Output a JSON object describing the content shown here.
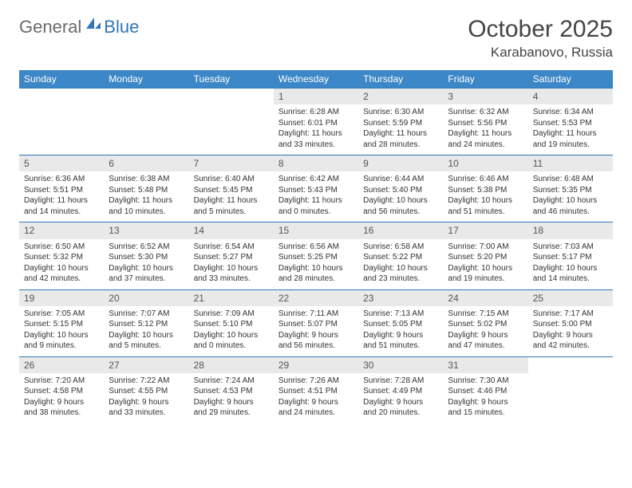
{
  "logo": {
    "text_general": "General",
    "text_blue": "Blue"
  },
  "title": "October 2025",
  "location": "Karabanovo, Russia",
  "day_headers": [
    "Sunday",
    "Monday",
    "Tuesday",
    "Wednesday",
    "Thursday",
    "Friday",
    "Saturday"
  ],
  "colors": {
    "header_bg": "#3c87c7",
    "daynum_bg": "#e9e9e9",
    "border": "#2f76b8",
    "logo_gray": "#6a6a6a",
    "logo_blue": "#2f76b8"
  },
  "weeks": [
    [
      {
        "n": "",
        "sr": "",
        "ss": "",
        "dl": "",
        "empty": true
      },
      {
        "n": "",
        "sr": "",
        "ss": "",
        "dl": "",
        "empty": true
      },
      {
        "n": "",
        "sr": "",
        "ss": "",
        "dl": "",
        "empty": true
      },
      {
        "n": "1",
        "sr": "Sunrise: 6:28 AM",
        "ss": "Sunset: 6:01 PM",
        "dl": "Daylight: 11 hours and 33 minutes."
      },
      {
        "n": "2",
        "sr": "Sunrise: 6:30 AM",
        "ss": "Sunset: 5:59 PM",
        "dl": "Daylight: 11 hours and 28 minutes."
      },
      {
        "n": "3",
        "sr": "Sunrise: 6:32 AM",
        "ss": "Sunset: 5:56 PM",
        "dl": "Daylight: 11 hours and 24 minutes."
      },
      {
        "n": "4",
        "sr": "Sunrise: 6:34 AM",
        "ss": "Sunset: 5:53 PM",
        "dl": "Daylight: 11 hours and 19 minutes."
      }
    ],
    [
      {
        "n": "5",
        "sr": "Sunrise: 6:36 AM",
        "ss": "Sunset: 5:51 PM",
        "dl": "Daylight: 11 hours and 14 minutes."
      },
      {
        "n": "6",
        "sr": "Sunrise: 6:38 AM",
        "ss": "Sunset: 5:48 PM",
        "dl": "Daylight: 11 hours and 10 minutes."
      },
      {
        "n": "7",
        "sr": "Sunrise: 6:40 AM",
        "ss": "Sunset: 5:45 PM",
        "dl": "Daylight: 11 hours and 5 minutes."
      },
      {
        "n": "8",
        "sr": "Sunrise: 6:42 AM",
        "ss": "Sunset: 5:43 PM",
        "dl": "Daylight: 11 hours and 0 minutes."
      },
      {
        "n": "9",
        "sr": "Sunrise: 6:44 AM",
        "ss": "Sunset: 5:40 PM",
        "dl": "Daylight: 10 hours and 56 minutes."
      },
      {
        "n": "10",
        "sr": "Sunrise: 6:46 AM",
        "ss": "Sunset: 5:38 PM",
        "dl": "Daylight: 10 hours and 51 minutes."
      },
      {
        "n": "11",
        "sr": "Sunrise: 6:48 AM",
        "ss": "Sunset: 5:35 PM",
        "dl": "Daylight: 10 hours and 46 minutes."
      }
    ],
    [
      {
        "n": "12",
        "sr": "Sunrise: 6:50 AM",
        "ss": "Sunset: 5:32 PM",
        "dl": "Daylight: 10 hours and 42 minutes."
      },
      {
        "n": "13",
        "sr": "Sunrise: 6:52 AM",
        "ss": "Sunset: 5:30 PM",
        "dl": "Daylight: 10 hours and 37 minutes."
      },
      {
        "n": "14",
        "sr": "Sunrise: 6:54 AM",
        "ss": "Sunset: 5:27 PM",
        "dl": "Daylight: 10 hours and 33 minutes."
      },
      {
        "n": "15",
        "sr": "Sunrise: 6:56 AM",
        "ss": "Sunset: 5:25 PM",
        "dl": "Daylight: 10 hours and 28 minutes."
      },
      {
        "n": "16",
        "sr": "Sunrise: 6:58 AM",
        "ss": "Sunset: 5:22 PM",
        "dl": "Daylight: 10 hours and 23 minutes."
      },
      {
        "n": "17",
        "sr": "Sunrise: 7:00 AM",
        "ss": "Sunset: 5:20 PM",
        "dl": "Daylight: 10 hours and 19 minutes."
      },
      {
        "n": "18",
        "sr": "Sunrise: 7:03 AM",
        "ss": "Sunset: 5:17 PM",
        "dl": "Daylight: 10 hours and 14 minutes."
      }
    ],
    [
      {
        "n": "19",
        "sr": "Sunrise: 7:05 AM",
        "ss": "Sunset: 5:15 PM",
        "dl": "Daylight: 10 hours and 9 minutes."
      },
      {
        "n": "20",
        "sr": "Sunrise: 7:07 AM",
        "ss": "Sunset: 5:12 PM",
        "dl": "Daylight: 10 hours and 5 minutes."
      },
      {
        "n": "21",
        "sr": "Sunrise: 7:09 AM",
        "ss": "Sunset: 5:10 PM",
        "dl": "Daylight: 10 hours and 0 minutes."
      },
      {
        "n": "22",
        "sr": "Sunrise: 7:11 AM",
        "ss": "Sunset: 5:07 PM",
        "dl": "Daylight: 9 hours and 56 minutes."
      },
      {
        "n": "23",
        "sr": "Sunrise: 7:13 AM",
        "ss": "Sunset: 5:05 PM",
        "dl": "Daylight: 9 hours and 51 minutes."
      },
      {
        "n": "24",
        "sr": "Sunrise: 7:15 AM",
        "ss": "Sunset: 5:02 PM",
        "dl": "Daylight: 9 hours and 47 minutes."
      },
      {
        "n": "25",
        "sr": "Sunrise: 7:17 AM",
        "ss": "Sunset: 5:00 PM",
        "dl": "Daylight: 9 hours and 42 minutes."
      }
    ],
    [
      {
        "n": "26",
        "sr": "Sunrise: 7:20 AM",
        "ss": "Sunset: 4:58 PM",
        "dl": "Daylight: 9 hours and 38 minutes."
      },
      {
        "n": "27",
        "sr": "Sunrise: 7:22 AM",
        "ss": "Sunset: 4:55 PM",
        "dl": "Daylight: 9 hours and 33 minutes."
      },
      {
        "n": "28",
        "sr": "Sunrise: 7:24 AM",
        "ss": "Sunset: 4:53 PM",
        "dl": "Daylight: 9 hours and 29 minutes."
      },
      {
        "n": "29",
        "sr": "Sunrise: 7:26 AM",
        "ss": "Sunset: 4:51 PM",
        "dl": "Daylight: 9 hours and 24 minutes."
      },
      {
        "n": "30",
        "sr": "Sunrise: 7:28 AM",
        "ss": "Sunset: 4:49 PM",
        "dl": "Daylight: 9 hours and 20 minutes."
      },
      {
        "n": "31",
        "sr": "Sunrise: 7:30 AM",
        "ss": "Sunset: 4:46 PM",
        "dl": "Daylight: 9 hours and 15 minutes."
      },
      {
        "n": "",
        "sr": "",
        "ss": "",
        "dl": "",
        "empty": true
      }
    ]
  ]
}
